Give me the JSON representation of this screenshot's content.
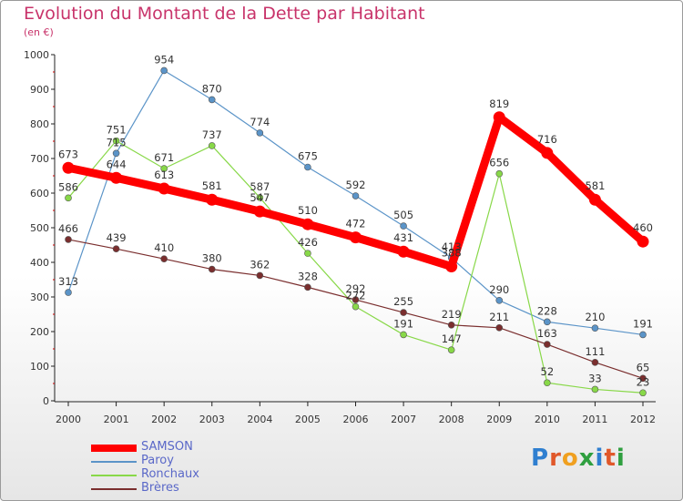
{
  "chart_data": {
    "type": "line",
    "title": "Evolution du Montant de la Dette par Habitant",
    "subtitle": "(en €)",
    "x": [
      "2000",
      "2001",
      "2002",
      "2003",
      "2004",
      "2005",
      "2006",
      "2007",
      "2008",
      "2009",
      "2010",
      "2011",
      "2012"
    ],
    "ylim": [
      0,
      1000
    ],
    "yticks": [
      0,
      100,
      200,
      300,
      400,
      500,
      600,
      700,
      800,
      900,
      1000
    ],
    "grid": false,
    "legend": "bottom-left",
    "series": [
      {
        "name": "SAMSON",
        "color": "#ff0000",
        "values": [
          673,
          644,
          613,
          581,
          547,
          510,
          472,
          431,
          388,
          819,
          716,
          581,
          460
        ],
        "gap_after_index": 8
      },
      {
        "name": "Paroy",
        "color": "#5b94c8",
        "values": [
          313,
          715,
          954,
          870,
          774,
          675,
          592,
          505,
          413,
          290,
          228,
          210,
          191
        ]
      },
      {
        "name": "Ronchaux",
        "color": "#88d848",
        "values": [
          586,
          751,
          671,
          737,
          587,
          426,
          272,
          191,
          147,
          656,
          52,
          33,
          23
        ]
      },
      {
        "name": "Brères",
        "color": "#7a2e2e",
        "values": [
          466,
          439,
          410,
          380,
          362,
          328,
          292,
          255,
          219,
          211,
          163,
          111,
          65
        ]
      }
    ]
  },
  "logo": {
    "text": "Proxiti",
    "letters": [
      "P",
      "r",
      "o",
      "x",
      "i",
      "t",
      "i"
    ],
    "colors": [
      "#2f7fd0",
      "#e0582a",
      "#f0a020",
      "#2f9f3f",
      "#2f7fd0",
      "#e0582a",
      "#2f9f3f"
    ]
  }
}
